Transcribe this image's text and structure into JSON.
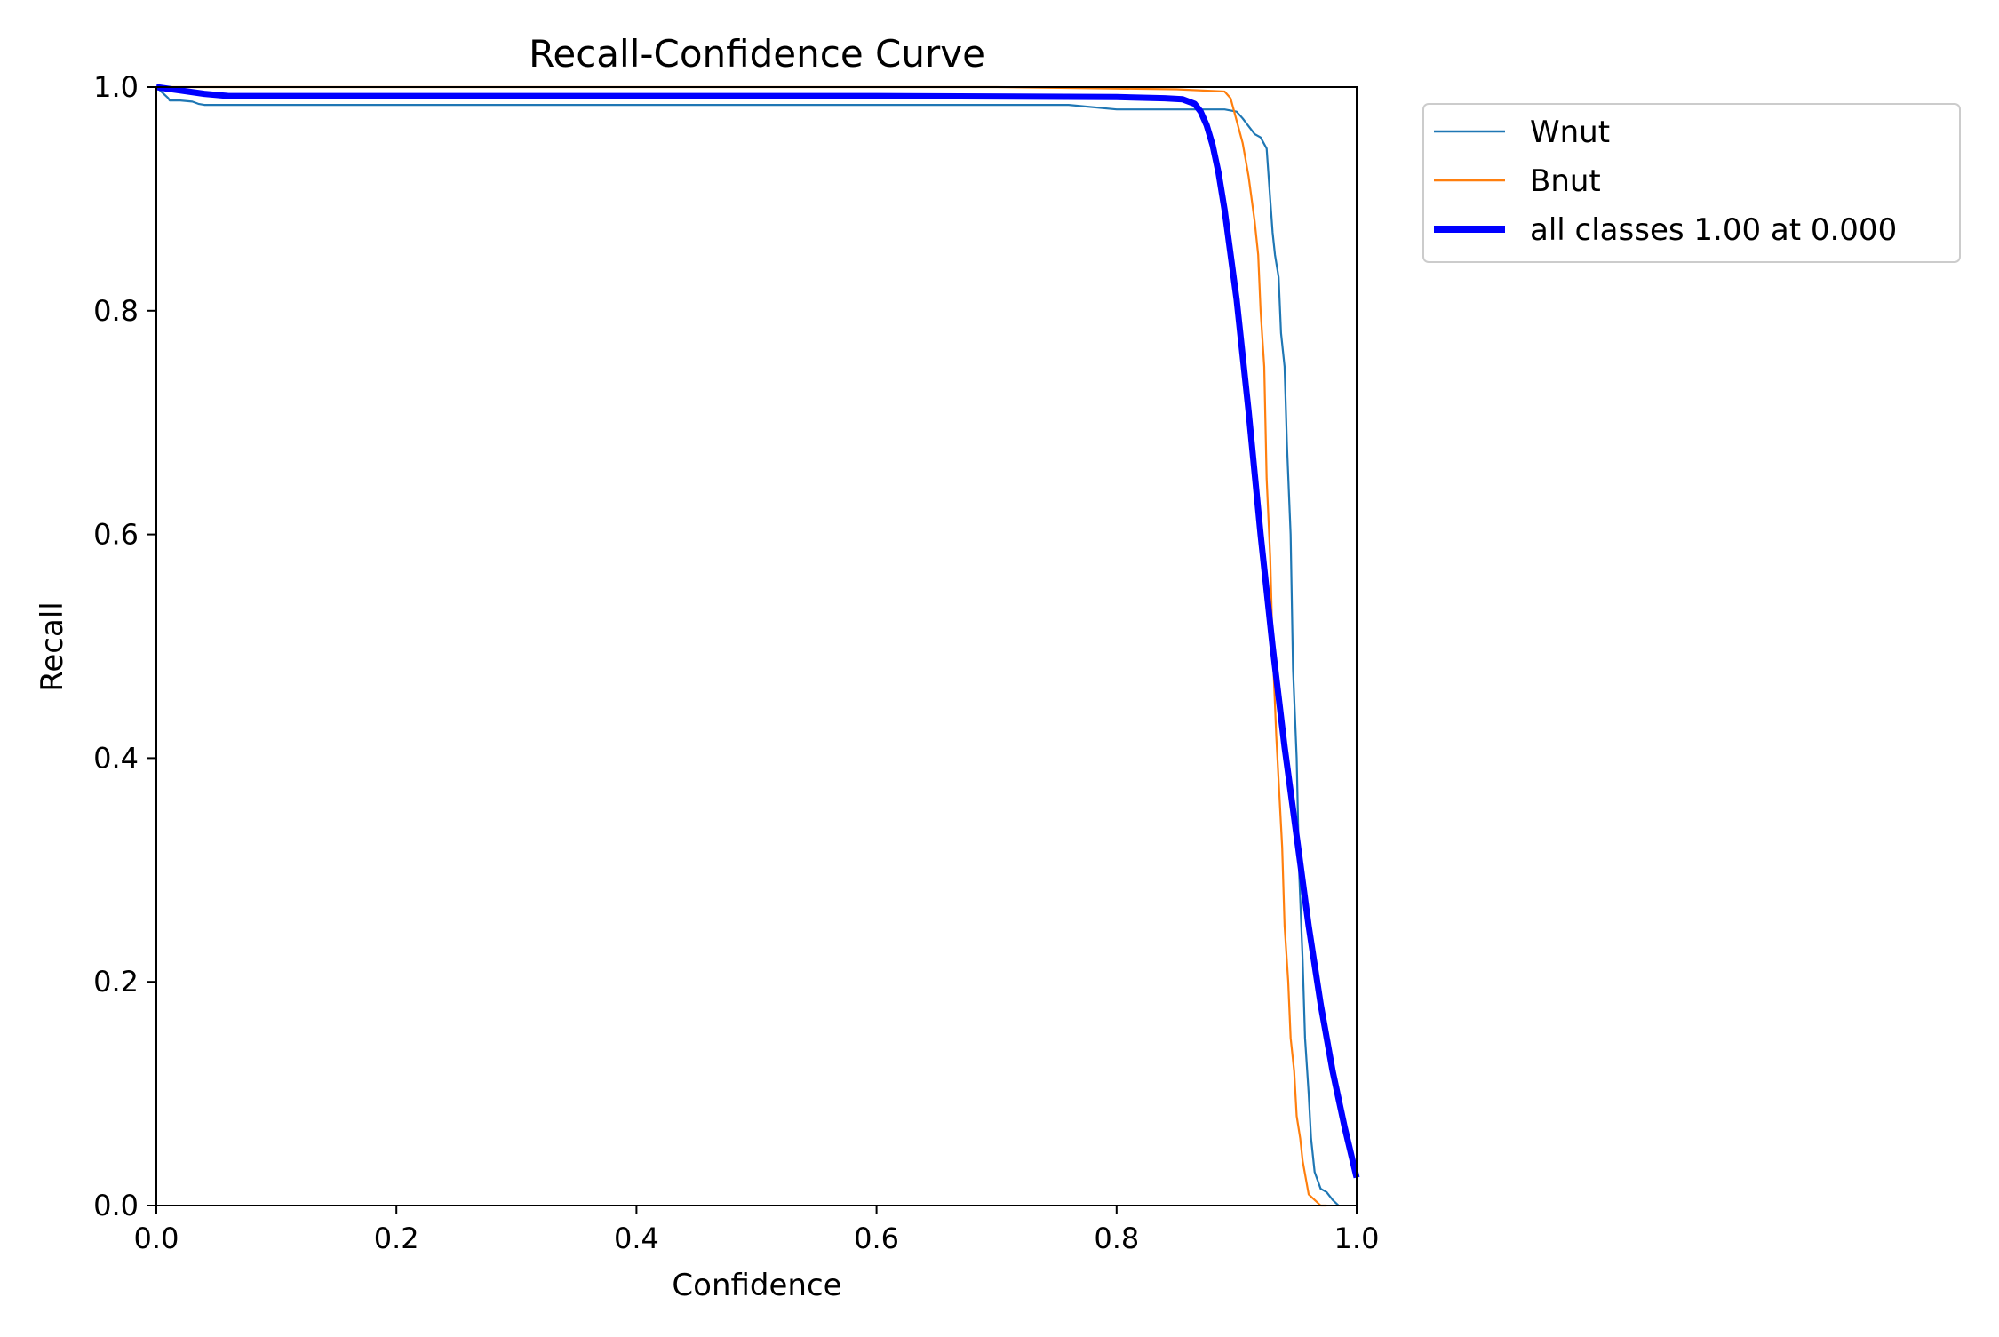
{
  "chart_data": {
    "type": "line",
    "title": "Recall-Confidence Curve",
    "xlabel": "Confidence",
    "ylabel": "Recall",
    "xlim": [
      0,
      1
    ],
    "ylim": [
      0,
      1
    ],
    "xticks": [
      "0.0",
      "0.2",
      "0.4",
      "0.6",
      "0.8",
      "1.0"
    ],
    "yticks": [
      "0.0",
      "0.2",
      "0.4",
      "0.6",
      "0.8",
      "1.0"
    ],
    "grid": false,
    "legend_position": "outside-top-right",
    "series": [
      {
        "name": "Wnut",
        "color": "#1f77b4",
        "line_width": "thin",
        "x": [
          0.0,
          0.005,
          0.01,
          0.011,
          0.02,
          0.03,
          0.035,
          0.04,
          0.1,
          0.3,
          0.5,
          0.7,
          0.76,
          0.8,
          0.85,
          0.89,
          0.9,
          0.905,
          0.91,
          0.915,
          0.92,
          0.925,
          0.928,
          0.93,
          0.932,
          0.935,
          0.937,
          0.94,
          0.942,
          0.945,
          0.947,
          0.95,
          0.952,
          0.955,
          0.957,
          0.96,
          0.962,
          0.965,
          0.97,
          0.975,
          0.98,
          0.985
        ],
        "y": [
          1.0,
          0.995,
          0.99,
          0.988,
          0.988,
          0.987,
          0.985,
          0.984,
          0.984,
          0.984,
          0.984,
          0.984,
          0.984,
          0.98,
          0.98,
          0.98,
          0.978,
          0.972,
          0.965,
          0.958,
          0.955,
          0.945,
          0.9,
          0.87,
          0.85,
          0.83,
          0.78,
          0.75,
          0.68,
          0.6,
          0.48,
          0.4,
          0.3,
          0.22,
          0.15,
          0.1,
          0.06,
          0.03,
          0.015,
          0.012,
          0.005,
          0.0
        ]
      },
      {
        "name": "Bnut",
        "color": "#ff7f0e",
        "line_width": "thin",
        "x": [
          0.0,
          0.1,
          0.3,
          0.5,
          0.7,
          0.85,
          0.89,
          0.895,
          0.9,
          0.905,
          0.91,
          0.915,
          0.918,
          0.92,
          0.923,
          0.925,
          0.928,
          0.93,
          0.933,
          0.935,
          0.938,
          0.94,
          0.943,
          0.945,
          0.948,
          0.95,
          0.953,
          0.955,
          0.96,
          0.965,
          0.97,
          0.975
        ],
        "y": [
          1.0,
          1.0,
          1.0,
          1.0,
          1.0,
          0.998,
          0.996,
          0.99,
          0.97,
          0.95,
          0.92,
          0.88,
          0.85,
          0.8,
          0.75,
          0.65,
          0.58,
          0.5,
          0.42,
          0.38,
          0.32,
          0.25,
          0.2,
          0.15,
          0.12,
          0.08,
          0.06,
          0.04,
          0.01,
          0.005,
          0.0,
          0.0
        ]
      },
      {
        "name": "all classes 1.00 at 0.000",
        "color": "#0000ff",
        "line_width": "thick",
        "x": [
          0.0,
          0.02,
          0.04,
          0.06,
          0.1,
          0.2,
          0.4,
          0.6,
          0.8,
          0.84,
          0.855,
          0.865,
          0.87,
          0.875,
          0.88,
          0.885,
          0.89,
          0.9,
          0.91,
          0.92,
          0.93,
          0.94,
          0.95,
          0.96,
          0.97,
          0.98,
          0.99,
          1.0
        ],
        "y": [
          1.0,
          0.997,
          0.994,
          0.992,
          0.992,
          0.992,
          0.992,
          0.992,
          0.991,
          0.99,
          0.989,
          0.985,
          0.978,
          0.966,
          0.948,
          0.923,
          0.89,
          0.81,
          0.71,
          0.6,
          0.5,
          0.41,
          0.33,
          0.25,
          0.18,
          0.12,
          0.07,
          0.025
        ]
      }
    ]
  }
}
